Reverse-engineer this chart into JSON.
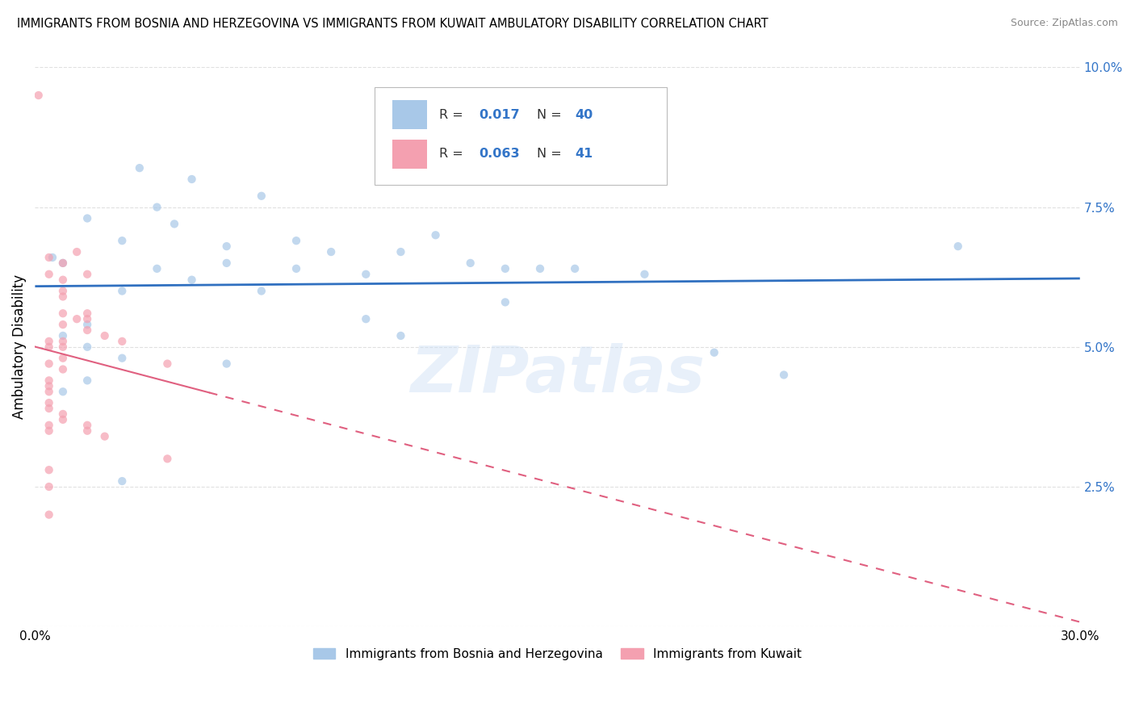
{
  "title": "IMMIGRANTS FROM BOSNIA AND HERZEGOVINA VS IMMIGRANTS FROM KUWAIT AMBULATORY DISABILITY CORRELATION CHART",
  "source": "Source: ZipAtlas.com",
  "ylabel": "Ambulatory Disability",
  "xlim": [
    0.0,
    0.3
  ],
  "ylim": [
    0.0,
    0.1
  ],
  "xticks": [
    0.0,
    0.05,
    0.1,
    0.15,
    0.2,
    0.25,
    0.3
  ],
  "xticklabels": [
    "0.0%",
    "",
    "",
    "",
    "",
    "",
    "30.0%"
  ],
  "yticks": [
    0.0,
    0.025,
    0.05,
    0.075,
    0.1
  ],
  "yticklabels": [
    "",
    "2.5%",
    "5.0%",
    "7.5%",
    "10.0%"
  ],
  "legend_R1": "0.017",
  "legend_N1": "40",
  "legend_R2": "0.063",
  "legend_N2": "41",
  "color_bosnia": "#a8c8e8",
  "color_kuwait": "#f4a0b0",
  "trendline_color_bosnia": "#3070c0",
  "trendline_color_kuwait": "#e06080",
  "marker_size": 55,
  "marker_alpha": 0.7,
  "background_color": "#ffffff",
  "watermark": "ZIPatlas",
  "bosnia_scatter_x": [
    0.005,
    0.015,
    0.025,
    0.035,
    0.045,
    0.03,
    0.04,
    0.055,
    0.065,
    0.075,
    0.085,
    0.095,
    0.105,
    0.115,
    0.125,
    0.135,
    0.065,
    0.075,
    0.025,
    0.035,
    0.045,
    0.055,
    0.095,
    0.105,
    0.145,
    0.155,
    0.135,
    0.175,
    0.195,
    0.265,
    0.015,
    0.025,
    0.015,
    0.008,
    0.008,
    0.015,
    0.055,
    0.025,
    0.215,
    0.008
  ],
  "bosnia_scatter_y": [
    0.066,
    0.073,
    0.069,
    0.075,
    0.08,
    0.082,
    0.072,
    0.068,
    0.077,
    0.069,
    0.067,
    0.063,
    0.067,
    0.07,
    0.065,
    0.058,
    0.06,
    0.064,
    0.06,
    0.064,
    0.062,
    0.065,
    0.055,
    0.052,
    0.064,
    0.064,
    0.064,
    0.063,
    0.049,
    0.068,
    0.05,
    0.048,
    0.044,
    0.042,
    0.052,
    0.054,
    0.047,
    0.026,
    0.045,
    0.065
  ],
  "kuwait_scatter_x": [
    0.001,
    0.004,
    0.008,
    0.012,
    0.004,
    0.008,
    0.008,
    0.015,
    0.008,
    0.008,
    0.015,
    0.015,
    0.008,
    0.012,
    0.015,
    0.02,
    0.004,
    0.008,
    0.008,
    0.004,
    0.004,
    0.008,
    0.008,
    0.004,
    0.004,
    0.004,
    0.004,
    0.004,
    0.008,
    0.008,
    0.025,
    0.038,
    0.015,
    0.004,
    0.004,
    0.015,
    0.02,
    0.004,
    0.004,
    0.038,
    0.004
  ],
  "kuwait_scatter_y": [
    0.095,
    0.066,
    0.065,
    0.067,
    0.063,
    0.06,
    0.062,
    0.063,
    0.059,
    0.056,
    0.056,
    0.055,
    0.054,
    0.055,
    0.053,
    0.052,
    0.051,
    0.05,
    0.051,
    0.05,
    0.047,
    0.048,
    0.046,
    0.044,
    0.043,
    0.042,
    0.04,
    0.039,
    0.038,
    0.037,
    0.051,
    0.047,
    0.036,
    0.036,
    0.035,
    0.035,
    0.034,
    0.025,
    0.02,
    0.03,
    0.028
  ],
  "grid_color": "#cccccc",
  "grid_alpha": 0.6
}
